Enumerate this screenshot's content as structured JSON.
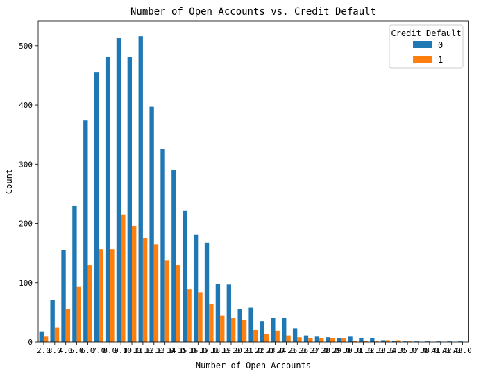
{
  "chart_data": {
    "type": "bar",
    "title": "Number of Open Accounts  vs. Credit Default",
    "xlabel": "Number of Open Accounts",
    "ylabel": "Count",
    "ylim": [
      0,
      542
    ],
    "yticks": [
      0,
      100,
      200,
      300,
      400,
      500
    ],
    "categories": [
      "2.0",
      "3.0",
      "4.0",
      "5.0",
      "6.0",
      "7.0",
      "8.0",
      "9.0",
      "10.0",
      "11.0",
      "12.0",
      "13.0",
      "14.0",
      "15.0",
      "16.0",
      "17.0",
      "18.0",
      "19.0",
      "20.0",
      "21.0",
      "22.0",
      "23.0",
      "24.0",
      "25.0",
      "26.0",
      "27.0",
      "28.0",
      "29.0",
      "30.0",
      "31.0",
      "32.0",
      "33.0",
      "34.0",
      "35.0",
      "37.0",
      "38.0",
      "41.0",
      "42.0",
      "43.0"
    ],
    "series": [
      {
        "name": "0",
        "color": "#1f77b4",
        "values": [
          18,
          71,
          155,
          230,
          374,
          455,
          481,
          513,
          481,
          516,
          397,
          326,
          290,
          222,
          181,
          168,
          98,
          97,
          56,
          58,
          35,
          40,
          40,
          23,
          11,
          9,
          8,
          6,
          9,
          6,
          6,
          3,
          2,
          1,
          1,
          1,
          1,
          1,
          1
        ]
      },
      {
        "name": "1",
        "color": "#ff7f0e",
        "values": [
          9,
          24,
          56,
          93,
          129,
          157,
          157,
          215,
          196,
          175,
          165,
          138,
          129,
          89,
          84,
          64,
          45,
          41,
          37,
          20,
          14,
          19,
          11,
          8,
          6,
          6,
          6,
          6,
          2,
          2,
          1,
          3,
          3,
          1,
          0,
          0,
          0,
          0,
          0
        ]
      }
    ],
    "legend": {
      "title": "Credit Default",
      "position": "top-right"
    },
    "grid": false
  }
}
